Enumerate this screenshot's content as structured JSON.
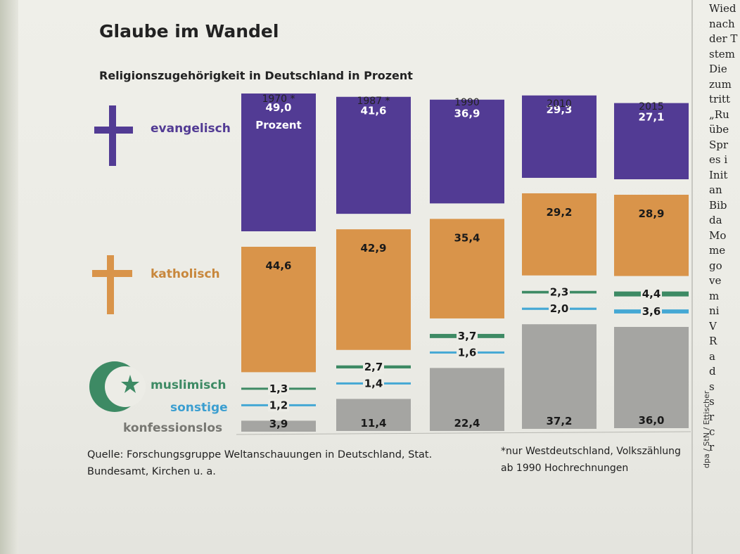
{
  "chart_data": {
    "type": "bar",
    "stacked": true,
    "title": "Glaube im Wandel",
    "subtitle": "Religionszugehörigkeit in Deutschland in Prozent",
    "categories": [
      "1970 *",
      "1987 *",
      "1990",
      "2010",
      "2015"
    ],
    "series": [
      {
        "name": "evangelisch",
        "color": "#523b94",
        "values": [
          49.0,
          41.6,
          36.9,
          29.3,
          27.1
        ],
        "labels": [
          "49,0",
          "41,6",
          "36,9",
          "29,3",
          "27,1"
        ]
      },
      {
        "name": "katholisch",
        "color": "#d9944a",
        "values": [
          44.6,
          42.9,
          35.4,
          29.2,
          28.9
        ],
        "labels": [
          "44,6",
          "42,9",
          "35,4",
          "29,2",
          "28,9"
        ]
      },
      {
        "name": "muslimisch",
        "color": "#3d8a64",
        "values": [
          1.3,
          2.7,
          3.7,
          2.3,
          4.4
        ],
        "labels": [
          "1,3",
          "2,7",
          "3,7",
          "2,3",
          "4,4"
        ]
      },
      {
        "name": "sonstige",
        "color": "#45a8d4",
        "values": [
          1.2,
          1.4,
          1.6,
          2.0,
          3.6
        ],
        "labels": [
          "1,2",
          "1,4",
          "1,6",
          "2,0",
          "3,6"
        ]
      },
      {
        "name": "konfessionslos",
        "color": "#a5a5a2",
        "values": [
          3.9,
          11.4,
          22.4,
          37.2,
          36.0
        ],
        "labels": [
          "3,9",
          "11,4",
          "22,4",
          "37,2",
          "36,0"
        ]
      }
    ],
    "unit_label": "Prozent",
    "legend": "left",
    "grid": false
  },
  "source": "Quelle: Forschungsgruppe Weltanschauungen in Deutschland, Stat. Bundesamt, Kirchen u. a.",
  "footnote": "*nur Westdeutschland, Volkszählung ab 1990 Hochrechnungen",
  "credit": "dpa / StN / Ettischer",
  "icons": [
    "cross-icon",
    "cross-icon",
    "crescent-star-icon"
  ],
  "neighbour_text": [
    "Wied",
    "nach",
    "der T",
    "stem",
    "Die",
    "zum",
    "tritt",
    "„Ru",
    "übe",
    "Spr",
    "es i",
    "Init",
    "an",
    "Bib",
    "da",
    "Mo",
    "me",
    "go",
    "ve",
    "m",
    "ni",
    "V",
    "R",
    "a",
    "d",
    "s",
    "s",
    "r",
    "c",
    "r"
  ]
}
